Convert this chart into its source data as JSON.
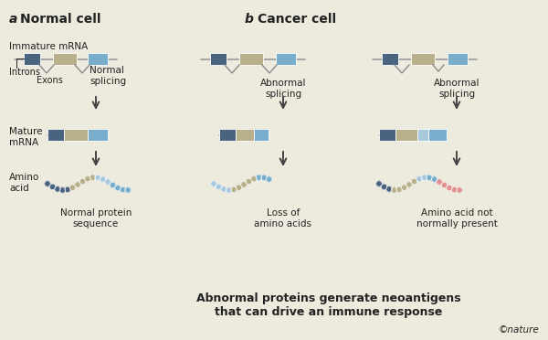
{
  "bg_color": "#edeade",
  "colors": {
    "dark_blue": "#4a6480",
    "tan": "#b8b08a",
    "light_blue": "#78aecb",
    "light_blue2": "#a8c8dc",
    "pink": "#e09090",
    "line_gray": "#9a9a9a",
    "arrow": "#444444",
    "text": "#222222",
    "splice_line": "#8a8a8a",
    "bead_outline": "#cccccc"
  },
  "label_a": "a",
  "title_a": "Normal cell",
  "label_b": "b",
  "title_b": "Cancer cell",
  "footer": "Abnormal proteins generate neoantigens\nthat can drive an immune response",
  "copyright": "©nature"
}
